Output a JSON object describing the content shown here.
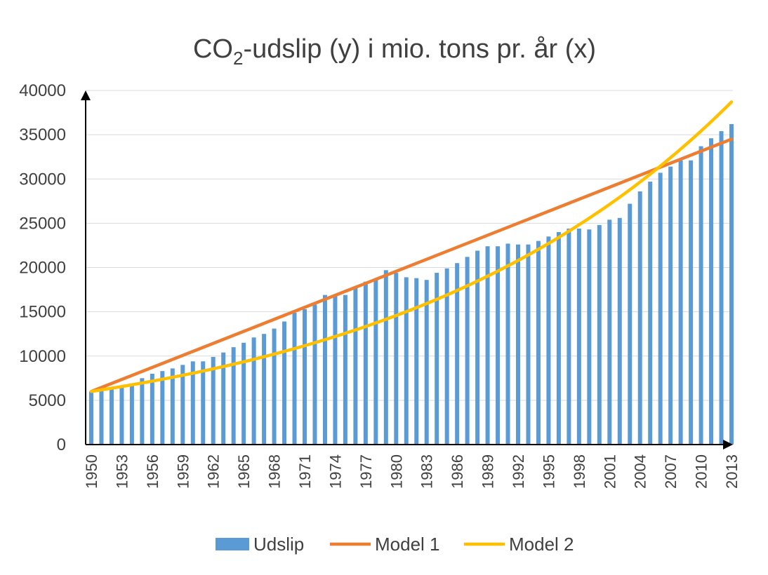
{
  "chart_data": {
    "type": "bar",
    "title": {
      "prefix": "CO",
      "subscript": "2",
      "suffix": "-udslip (y) i mio. tons pr. år (x)"
    },
    "xlabel": "",
    "ylabel": "",
    "ylim": [
      0,
      40000
    ],
    "y_ticks": [
      "0",
      "5000",
      "10000",
      "15000",
      "20000",
      "25000",
      "30000",
      "35000",
      "40000"
    ],
    "x": [
      1950,
      1951,
      1952,
      1953,
      1954,
      1955,
      1956,
      1957,
      1958,
      1959,
      1960,
      1961,
      1962,
      1963,
      1964,
      1965,
      1966,
      1967,
      1968,
      1969,
      1970,
      1971,
      1972,
      1973,
      1974,
      1975,
      1976,
      1977,
      1978,
      1979,
      1980,
      1981,
      1982,
      1983,
      1984,
      1985,
      1986,
      1987,
      1988,
      1989,
      1990,
      1991,
      1992,
      1993,
      1994,
      1995,
      1996,
      1997,
      1998,
      1999,
      2000,
      2001,
      2002,
      2003,
      2004,
      2005,
      2006,
      2007,
      2008,
      2009,
      2010,
      2011,
      2012,
      2013
    ],
    "x_tick_labels": [
      "1950",
      "1953",
      "1956",
      "1959",
      "1962",
      "1965",
      "1968",
      "1971",
      "1974",
      "1977",
      "1980",
      "1983",
      "1986",
      "1989",
      "1992",
      "1995",
      "1998",
      "2001",
      "2004",
      "2007",
      "2010",
      "2013"
    ],
    "grid": true,
    "legend_position": "bottom",
    "colors": {
      "bars": "#5b9bd5",
      "model1": "#ed7d31",
      "model2": "#ffc000",
      "axis": "#000000",
      "grid": "#d9d9d9",
      "text": "#404040"
    },
    "series": [
      {
        "name": "Udslip",
        "kind": "bar",
        "values": [
          6000,
          6300,
          6400,
          6500,
          6900,
          7500,
          8000,
          8300,
          8600,
          9000,
          9400,
          9400,
          9900,
          10400,
          11000,
          11500,
          12100,
          12500,
          13100,
          13900,
          14900,
          15300,
          15800,
          16900,
          16800,
          16900,
          17700,
          18400,
          18600,
          19700,
          19400,
          18900,
          18800,
          18600,
          19400,
          19900,
          20500,
          21200,
          21900,
          22400,
          22400,
          22700,
          22600,
          22600,
          23000,
          23500,
          24000,
          24400,
          24400,
          24300,
          24800,
          25400,
          25600,
          27200,
          28600,
          29700,
          30700,
          31400,
          32100,
          32100,
          33700,
          34600,
          35400,
          36200
        ]
      },
      {
        "name": "Model 1",
        "kind": "line",
        "start": [
          1950,
          6000
        ],
        "end": [
          2013,
          34500
        ]
      },
      {
        "name": "Model 2",
        "kind": "curve",
        "start": [
          1950,
          6000
        ],
        "end": [
          2013,
          38700
        ]
      }
    ]
  }
}
